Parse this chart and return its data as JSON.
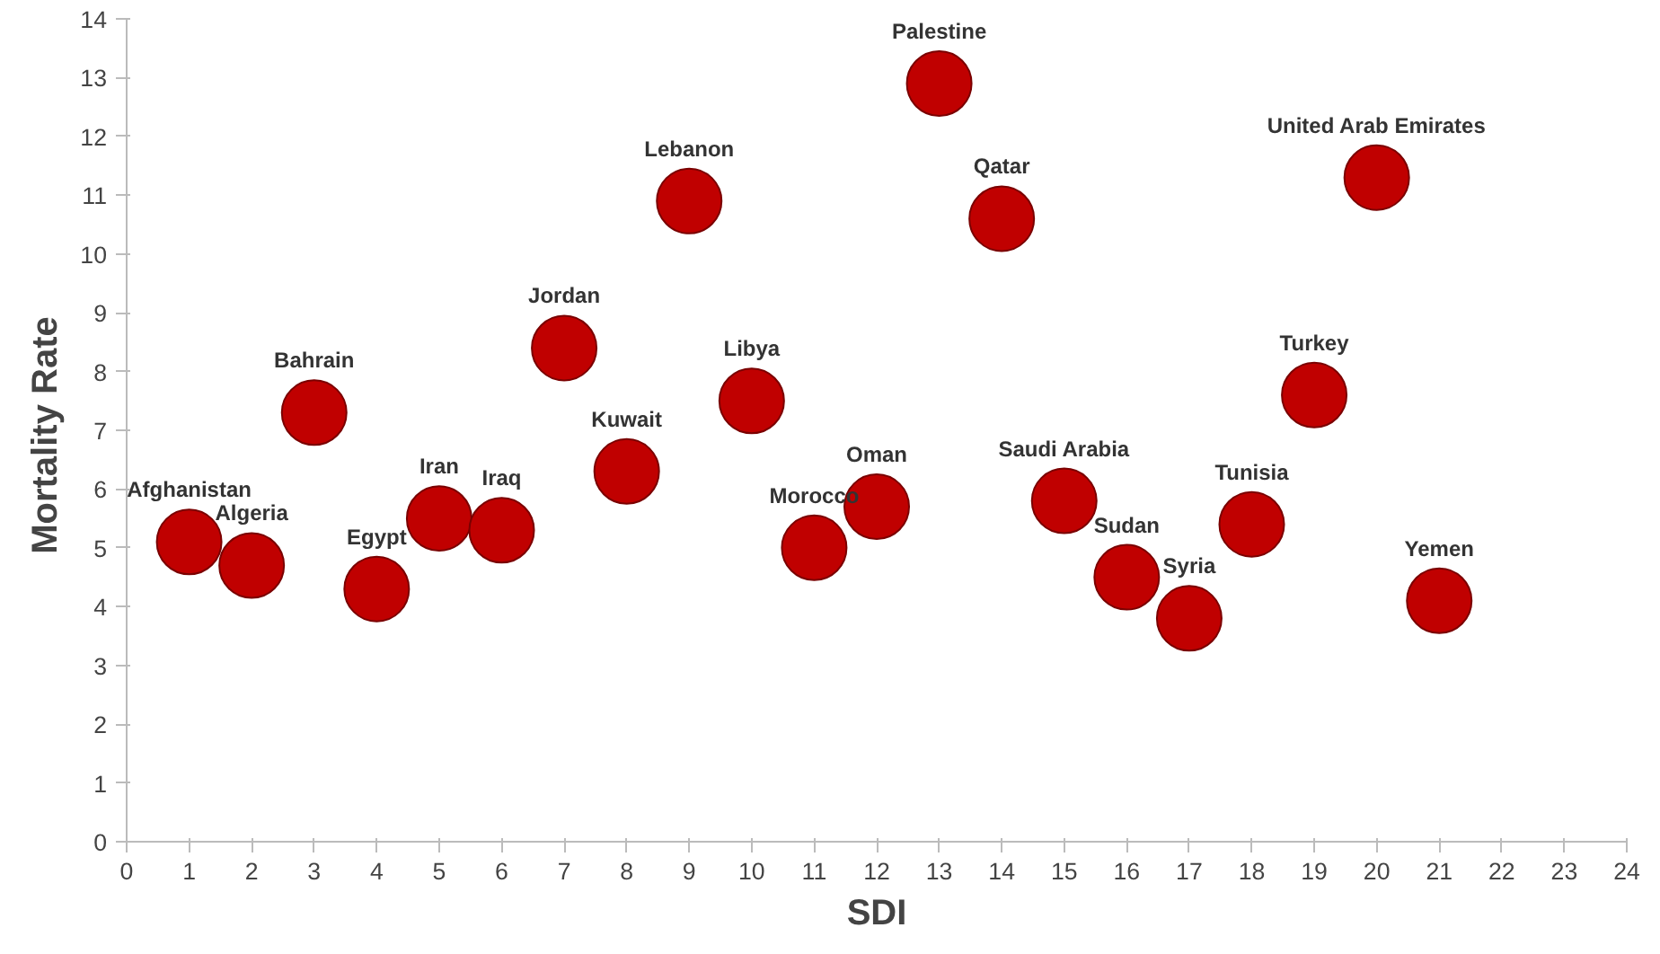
{
  "chart_data": {
    "type": "scatter",
    "xlabel": "SDI",
    "ylabel": "Mortality  Rate",
    "x": [
      1,
      2,
      3,
      4,
      5,
      6,
      7,
      8,
      9,
      10,
      11,
      12,
      13,
      14,
      15,
      16,
      17,
      18,
      19,
      20,
      21
    ],
    "series": [
      {
        "color": "#c00000",
        "values": [
          5.1,
          4.7,
          7.3,
          4.3,
          5.5,
          5.3,
          8.4,
          6.3,
          10.9,
          7.5,
          5.0,
          5.7,
          12.9,
          10.6,
          5.8,
          4.5,
          3.8,
          5.4,
          7.6,
          11.3,
          4.1
        ]
      }
    ],
    "annotations": [
      {
        "text": "Afghanistan",
        "x": 1,
        "y": 5.1
      },
      {
        "text": "Algeria",
        "x": 2,
        "y": 4.7
      },
      {
        "text": "Bahrain",
        "x": 3,
        "y": 7.3
      },
      {
        "text": "Egypt",
        "x": 4,
        "y": 4.3
      },
      {
        "text": "Iran",
        "x": 5,
        "y": 5.5
      },
      {
        "text": "Iraq",
        "x": 6,
        "y": 5.3
      },
      {
        "text": "Jordan",
        "x": 7,
        "y": 8.4
      },
      {
        "text": "Kuwait",
        "x": 8,
        "y": 6.3
      },
      {
        "text": "Lebanon",
        "x": 9,
        "y": 10.9
      },
      {
        "text": "Libya",
        "x": 10,
        "y": 7.5
      },
      {
        "text": "Morocco",
        "x": 11,
        "y": 5.0
      },
      {
        "text": "Oman",
        "x": 12,
        "y": 5.7
      },
      {
        "text": "Palestine",
        "x": 13,
        "y": 12.9
      },
      {
        "text": "Qatar",
        "x": 14,
        "y": 10.6
      },
      {
        "text": "Saudi Arabia",
        "x": 15,
        "y": 5.8
      },
      {
        "text": "Sudan",
        "x": 16,
        "y": 4.5
      },
      {
        "text": "Syria",
        "x": 17,
        "y": 3.8
      },
      {
        "text": "Tunisia",
        "x": 18,
        "y": 5.4
      },
      {
        "text": "Turkey",
        "x": 19,
        "y": 7.6
      },
      {
        "text": "United Arab Emirates",
        "x": 20,
        "y": 11.3
      },
      {
        "text": "Yemen",
        "x": 21,
        "y": 4.1
      }
    ],
    "xlim": [
      0,
      24
    ],
    "xticks": [
      0,
      1,
      2,
      3,
      4,
      5,
      6,
      7,
      8,
      9,
      10,
      11,
      12,
      13,
      14,
      15,
      16,
      17,
      18,
      19,
      20,
      21,
      22,
      23,
      24
    ],
    "ylim": [
      0,
      14
    ],
    "yticks": [
      0,
      1,
      2,
      3,
      4,
      5,
      6,
      7,
      8,
      9,
      10,
      11,
      12,
      13,
      14
    ],
    "marker": "circle",
    "grid": false
  }
}
